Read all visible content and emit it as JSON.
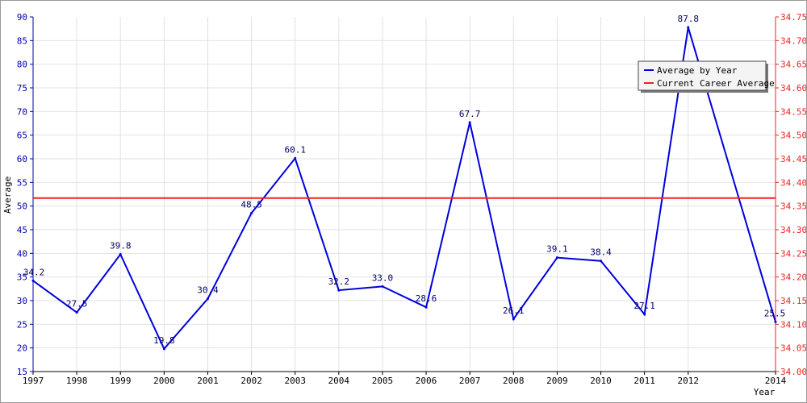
{
  "chart_data": {
    "type": "line",
    "title": "",
    "xlabel": "Year",
    "ylabel": "Average",
    "x": [
      1997,
      1998,
      1999,
      2000,
      2001,
      2002,
      2003,
      2004,
      2005,
      2006,
      2007,
      2008,
      2009,
      2010,
      2011,
      2012,
      2014
    ],
    "series": [
      {
        "name": "Average by Year",
        "axis": "left",
        "color": "#0000dd",
        "values": [
          34.2,
          27.5,
          39.8,
          19.8,
          30.4,
          48.5,
          60.1,
          32.2,
          33.0,
          28.6,
          67.7,
          26.1,
          39.1,
          38.4,
          27.1,
          87.8,
          25.5
        ],
        "labels": [
          "34.2",
          "27.5",
          "39.8",
          "19.8",
          "30.4",
          "48.5",
          "60.1",
          "32.2",
          "33.0",
          "28.6",
          "67.7",
          "26.1",
          "39.1",
          "38.4",
          "27.1",
          "87.8",
          "25.5"
        ]
      },
      {
        "name": "Current Career Average",
        "axis": "left",
        "color": "#ee2222",
        "constant": 51.7
      }
    ],
    "x_ticks": [
      "1997",
      "1998",
      "1999",
      "2000",
      "2001",
      "2002",
      "2003",
      "2004",
      "2005",
      "2006",
      "2007",
      "2008",
      "2009",
      "2010",
      "2011",
      "2012",
      "2014"
    ],
    "y_left": {
      "range": [
        15,
        90
      ],
      "ticks": [
        "15",
        "20",
        "25",
        "30",
        "35",
        "40",
        "45",
        "50",
        "55",
        "60",
        "65",
        "70",
        "75",
        "80",
        "85",
        "90"
      ],
      "color": "#0000aa"
    },
    "y_right": {
      "range": [
        34.0,
        34.75
      ],
      "ticks": [
        "34.00",
        "34.05",
        "34.10",
        "34.15",
        "34.20",
        "34.25",
        "34.30",
        "34.35",
        "34.40",
        "34.45",
        "34.50",
        "34.55",
        "34.60",
        "34.65",
        "34.70",
        "34.75"
      ],
      "color": "#ee2222"
    },
    "grid": true,
    "legend_position": "top-right"
  }
}
